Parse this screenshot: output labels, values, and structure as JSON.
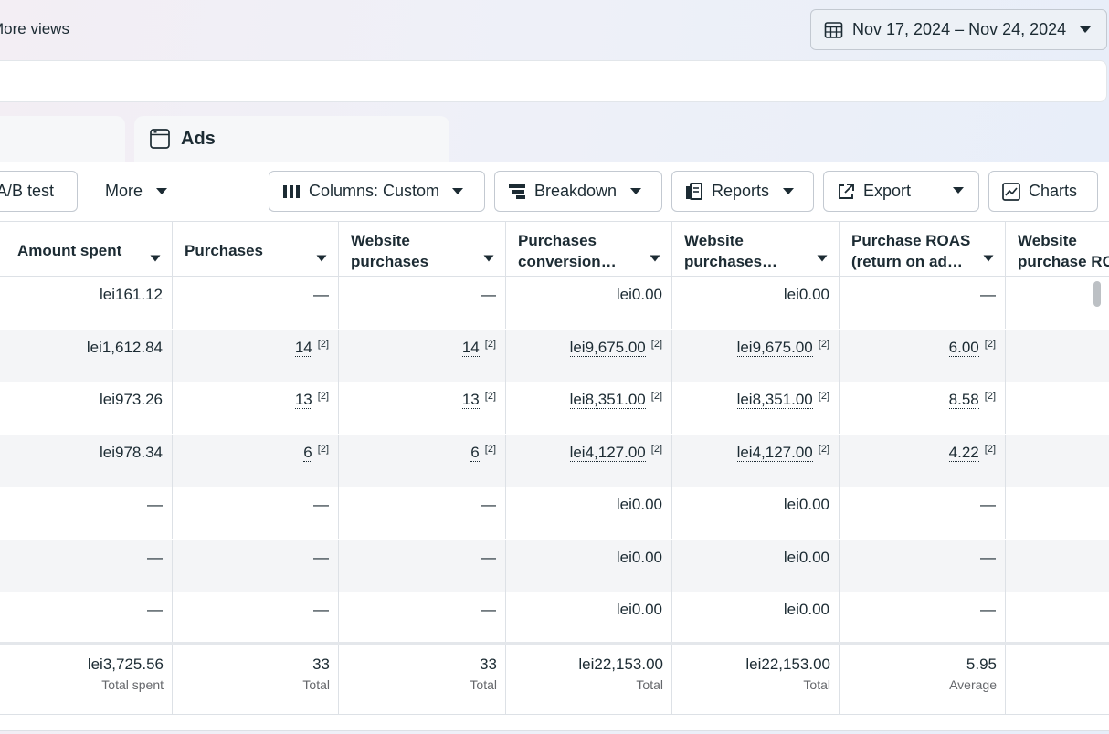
{
  "top": {
    "more_views": "More views",
    "date_range": "Nov 17, 2024 – Nov 24, 2024"
  },
  "tabs": {
    "ads": "Ads"
  },
  "toolbar": {
    "ab_test": "A/B test",
    "more": "More",
    "columns": "Columns: Custom",
    "breakdown": "Breakdown",
    "reports": "Reports",
    "export": "Export",
    "charts": "Charts"
  },
  "table": {
    "headers": {
      "amount_spent": "Amount spent",
      "purchases": "Purchases",
      "website_purchases_l1": "Website",
      "website_purchases_l2": "purchases",
      "purch_conv_l1": "Purchases",
      "purch_conv_l2": "conversion…",
      "web_purch_l1": "Website",
      "web_purch_l2": "purchases…",
      "roas_l1": "Purchase ROAS",
      "roas_l2": "(return on ad…",
      "web_roas_l1": "Website",
      "web_roas_l2": "purchase RO"
    },
    "rows": [
      {
        "amount": "lei161.12",
        "purchases": "—",
        "web_purchases": "—",
        "conv_value": "lei0.00",
        "web_value": "lei0.00",
        "roas": "—"
      },
      {
        "amount": "lei1,612.84",
        "purchases": "14",
        "web_purchases": "14",
        "conv_value": "lei9,675.00",
        "web_value": "lei9,675.00",
        "roas": "6.00",
        "note": "[2]"
      },
      {
        "amount": "lei973.26",
        "purchases": "13",
        "web_purchases": "13",
        "conv_value": "lei8,351.00",
        "web_value": "lei8,351.00",
        "roas": "8.58",
        "note": "[2]"
      },
      {
        "amount": "lei978.34",
        "purchases": "6",
        "web_purchases": "6",
        "conv_value": "lei4,127.00",
        "web_value": "lei4,127.00",
        "roas": "4.22",
        "note": "[2]"
      },
      {
        "amount": "—",
        "purchases": "—",
        "web_purchases": "—",
        "conv_value": "lei0.00",
        "web_value": "lei0.00",
        "roas": "—"
      },
      {
        "amount": "—",
        "purchases": "—",
        "web_purchases": "—",
        "conv_value": "lei0.00",
        "web_value": "lei0.00",
        "roas": "—"
      },
      {
        "amount": "—",
        "purchases": "—",
        "web_purchases": "—",
        "conv_value": "lei0.00",
        "web_value": "lei0.00",
        "roas": "—"
      }
    ],
    "totals": {
      "amount": "lei3,725.56",
      "amount_sub": "Total spent",
      "purchases": "33",
      "purchases_sub": "Total",
      "web_purchases": "33",
      "web_purchases_sub": "Total",
      "conv_value": "lei22,153.00",
      "conv_value_sub": "Total",
      "web_value": "lei22,153.00",
      "web_value_sub": "Total",
      "roas": "5.95",
      "roas_sub": "Average"
    }
  }
}
